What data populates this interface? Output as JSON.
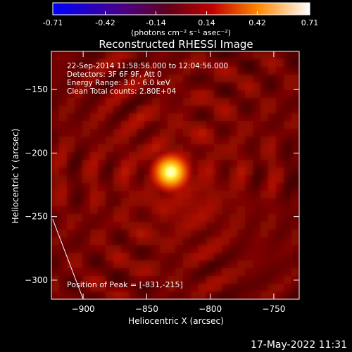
{
  "chart_data": {
    "type": "heatmap",
    "title": "Reconstructed RHESSI Image",
    "xlabel": "Heliocentric X (arcsec)",
    "ylabel": "Heliocentric Y (arcsec)",
    "xlim": [
      -925,
      -730
    ],
    "ylim": [
      -315,
      -120
    ],
    "xticks": [
      -900,
      -850,
      -800,
      -750
    ],
    "yticks": [
      -150,
      -200,
      -250,
      -300
    ],
    "colorbar": {
      "ticks": [
        -0.71,
        -0.42,
        -0.14,
        0.14,
        0.42,
        0.71
      ],
      "range": [
        -0.71,
        0.71
      ],
      "unit_label": "(photons cm⁻² s⁻¹ asec⁻²)"
    },
    "annotations": [
      "22-Sep-2014 11:58:56.000 to 12:04:56.000",
      "Detectors: 3F 6F 9F, Att 0",
      "Energy Range: 3.0 - 6.0 keV",
      "Clean    Total counts: 2.80E+04"
    ],
    "peak": {
      "label": "Position of Peak = [-831,-215]",
      "x": -831,
      "y": -215
    },
    "limb_line": [
      [
        -924,
        -252
      ],
      [
        -900,
        -315
      ]
    ]
  },
  "footer": {
    "timestamp": "17-May-2022 11:31"
  }
}
